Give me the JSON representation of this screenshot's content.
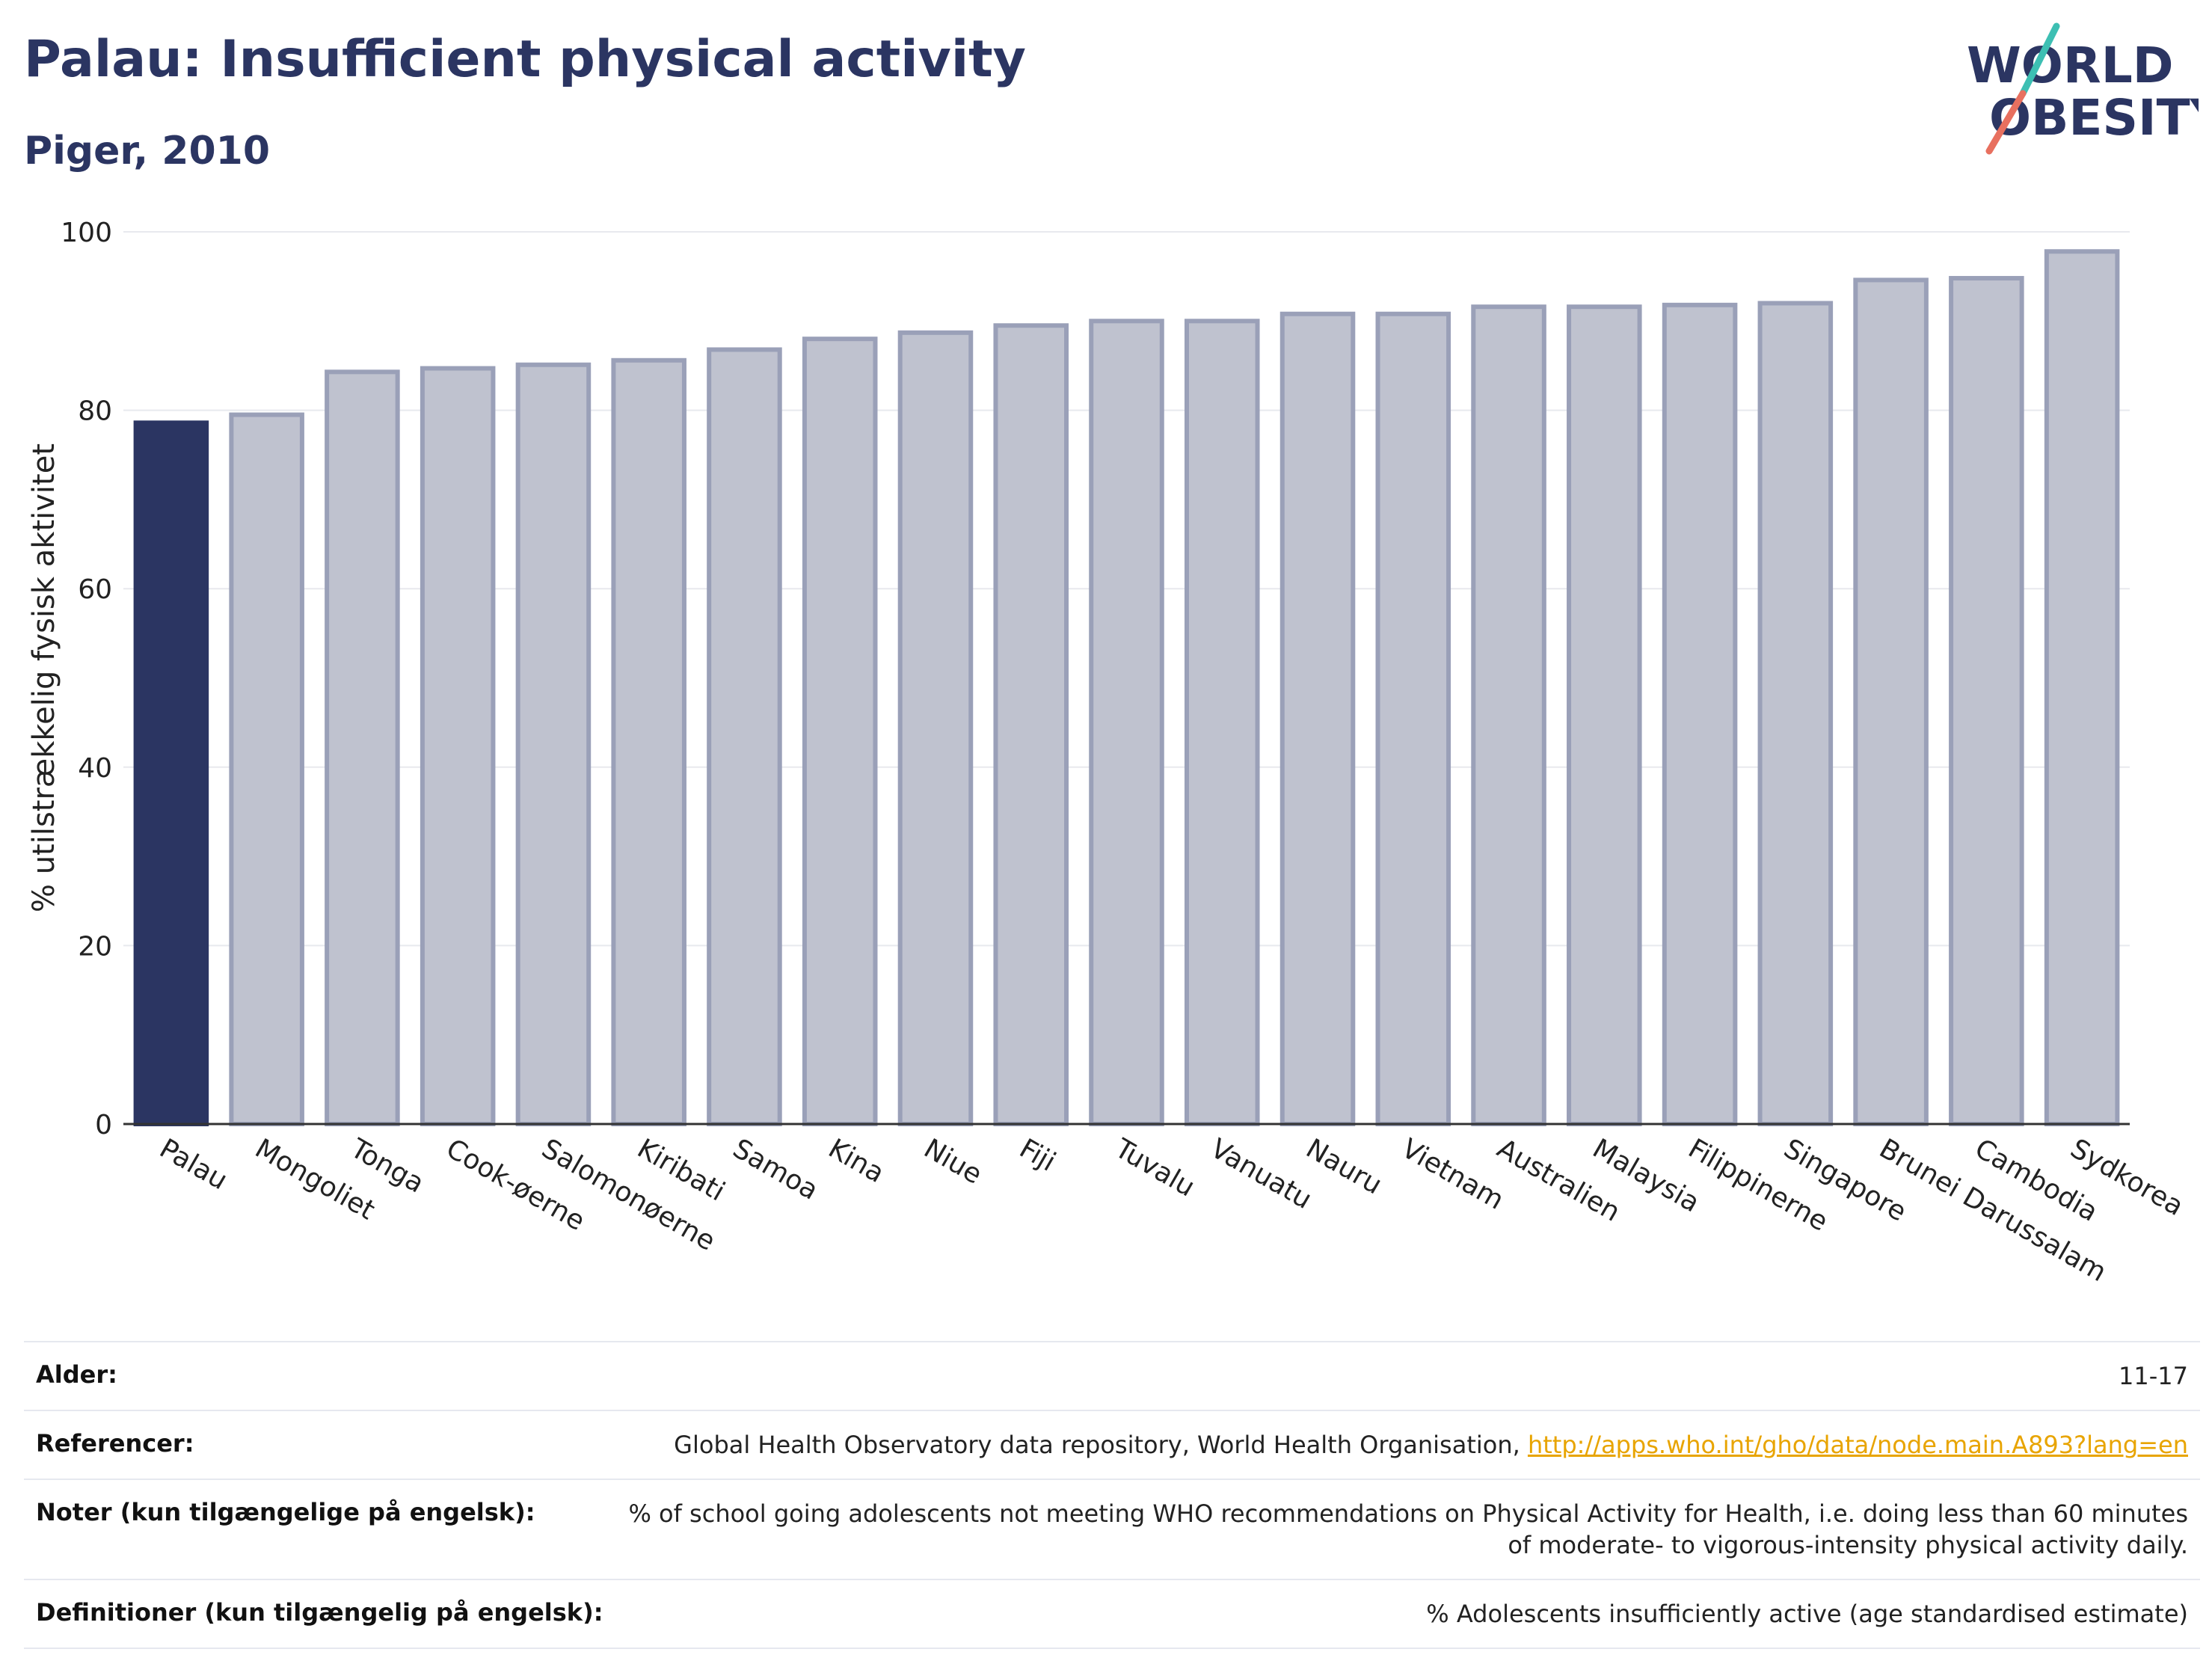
{
  "header": {
    "title": "Palau: Insufficient physical activity",
    "subtitle": "Piger, 2010"
  },
  "logo": {
    "line1": "WORLD",
    "line2": "OBESITY",
    "text_color": "#2b3562",
    "slash_colors": [
      "#3dbfb3",
      "#e8705f"
    ]
  },
  "chart_data": {
    "type": "bar",
    "categories": [
      "Palau",
      "Mongoliet",
      "Tonga",
      "Cook-øerne",
      "Salomonøerne",
      "Kiribati",
      "Samoa",
      "Kina",
      "Niue",
      "Fiji",
      "Tuvalu",
      "Vanuatu",
      "Nauru",
      "Vietnam",
      "Australien",
      "Malaysia",
      "Filippinerne",
      "Singapore",
      "Brunei Darussalam",
      "Cambodia",
      "Sydkorea"
    ],
    "values": [
      78.6,
      79.5,
      84.3,
      84.7,
      85.1,
      85.6,
      86.8,
      88.0,
      88.7,
      89.5,
      90.0,
      90.0,
      90.8,
      90.8,
      91.6,
      91.6,
      91.8,
      92.0,
      94.6,
      94.8,
      97.8
    ],
    "highlight_index": 0,
    "title": "",
    "xlabel": "",
    "ylabel": "% utilstrækkelig fysisk aktivitet",
    "ylim": [
      0,
      100
    ],
    "yticks": [
      0,
      20,
      40,
      60,
      80,
      100
    ],
    "grid": true,
    "colors": {
      "highlight_bar": "#2b3562",
      "bar_fill": "#bfc2cf",
      "bar_stroke": "#9aa0b8",
      "grid": "#e8e9ee"
    }
  },
  "info": {
    "age_label": "Alder:",
    "age_value": "11-17",
    "ref_label": "Referencer:",
    "ref_text": "Global Health Observatory data repository, World Health Organisation, ",
    "ref_link": "http://apps.who.int/gho/data/node.main.A893?lang=en",
    "notes_label": "Noter (kun tilgængelige på engelsk):",
    "notes_value": "% of school going adolescents not meeting WHO recommendations on Physical Activity for Health, i.e. doing less than 60 minutes of moderate- to vigorous-intensity physical activity daily.",
    "def_label": "Definitioner (kun tilgængelig på engelsk):",
    "def_value": "% Adolescents insufficiently active (age standardised estimate)"
  }
}
